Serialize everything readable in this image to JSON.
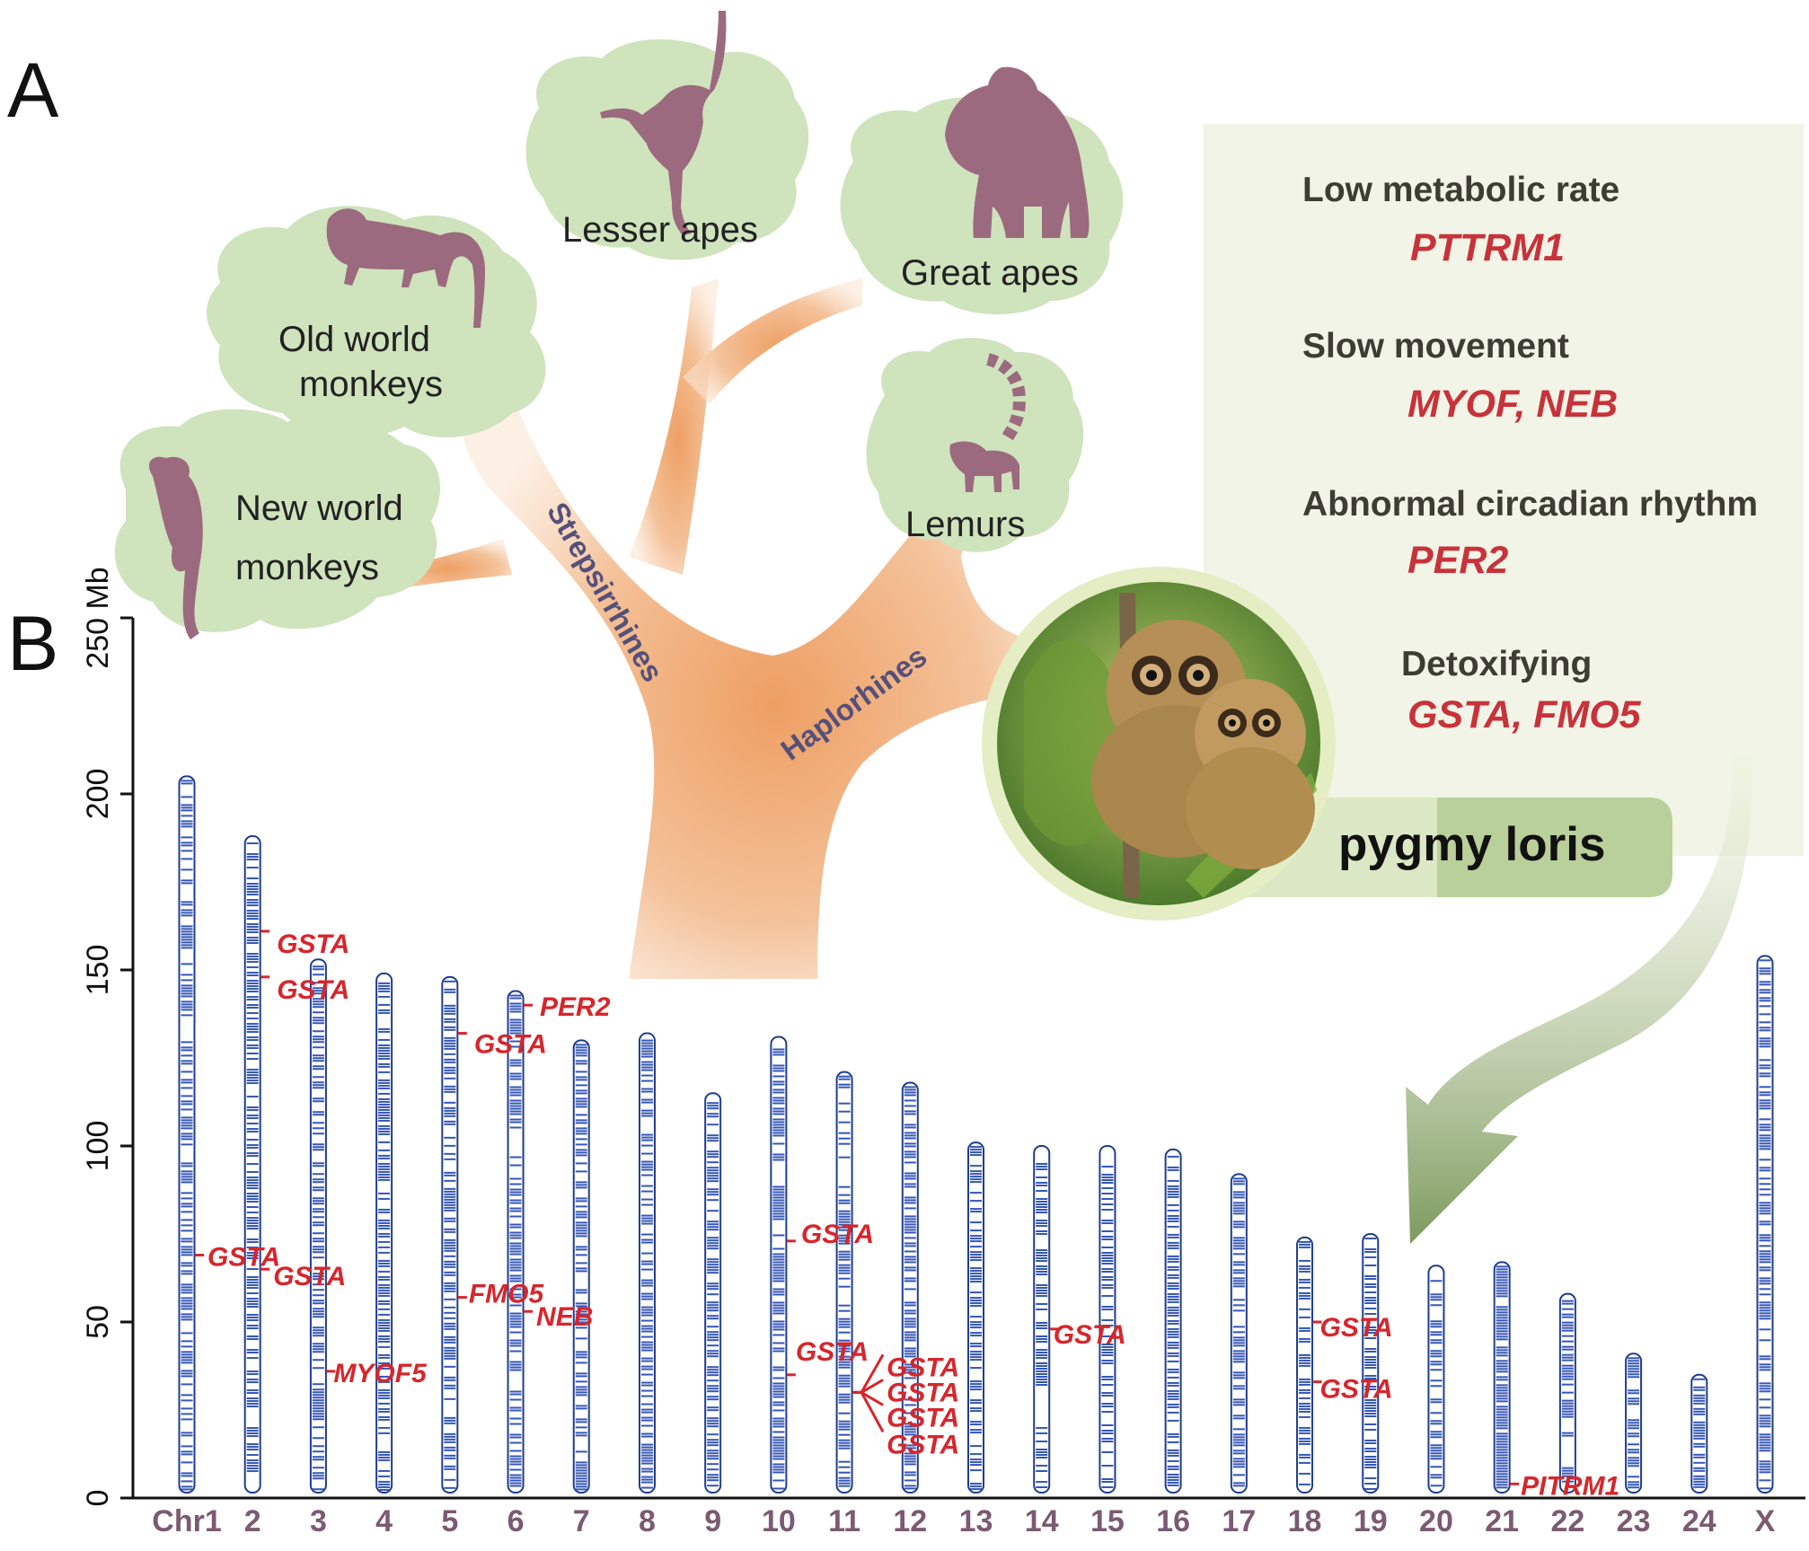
{
  "panels": {
    "a_label": "A",
    "b_label": "B"
  },
  "tree": {
    "clouds": {
      "new_world": {
        "line1": "New world",
        "line2": "monkeys"
      },
      "old_world": {
        "line1": "Old world",
        "line2": "monkeys"
      },
      "lesser_apes": "Lesser apes",
      "great_apes": "Great apes",
      "lemurs": "Lemurs"
    },
    "branches": {
      "strepsirrhines": "Strepsirrhines",
      "haplorhines": "Haplorhines"
    },
    "colors": {
      "cloud": "#cfe3bd",
      "silhouette": "#9c6a7e",
      "trunk": "#ee9f63",
      "branch_text": "#55507a"
    }
  },
  "traits": [
    {
      "title": "Low  metabolic rate",
      "genes": "PTTRM1"
    },
    {
      "title": "Slow movement",
      "genes": "MYOF, NEB"
    },
    {
      "title": "Abnormal circadian rhythm",
      "genes": "PER2"
    },
    {
      "title": "Detoxifying",
      "genes": "GSTA, FMO5"
    }
  ],
  "species_label": "pygmy loris",
  "chart_data": {
    "type": "ideogram",
    "ylabel": "250 Mb",
    "ylim": [
      0,
      250
    ],
    "yticks": [
      0,
      50,
      100,
      150,
      200
    ],
    "categories": [
      "Chr1",
      "2",
      "3",
      "4",
      "5",
      "6",
      "7",
      "8",
      "9",
      "10",
      "11",
      "12",
      "13",
      "14",
      "15",
      "16",
      "17",
      "18",
      "19",
      "20",
      "21",
      "22",
      "23",
      "24",
      "X"
    ],
    "lengths": [
      205,
      188,
      153,
      149,
      148,
      144,
      130,
      132,
      115,
      131,
      121,
      118,
      101,
      100,
      100,
      99,
      92,
      74,
      75,
      66,
      67,
      58,
      41,
      35,
      154
    ],
    "annotations": [
      {
        "chrom": "2",
        "pos": 161,
        "gene": "GSTA"
      },
      {
        "chrom": "2",
        "pos": 148,
        "gene": "GSTA"
      },
      {
        "chrom": "Chr1",
        "pos": 69,
        "gene": "GSTA"
      },
      {
        "chrom": "2",
        "pos": 65,
        "gene": "GSTA"
      },
      {
        "chrom": "3",
        "pos": 36,
        "gene": "MYOF5"
      },
      {
        "chrom": "5",
        "pos": 132,
        "gene": "GSTA"
      },
      {
        "chrom": "5",
        "pos": 57,
        "gene": "FMO5"
      },
      {
        "chrom": "6",
        "pos": 140,
        "gene": "PER2"
      },
      {
        "chrom": "6",
        "pos": 53,
        "gene": "NEB"
      },
      {
        "chrom": "10",
        "pos": 73,
        "gene": "GSTA"
      },
      {
        "chrom": "10",
        "pos": 35,
        "gene": "GSTA"
      },
      {
        "chrom": "11",
        "pos": 30,
        "gene": "GSTA"
      },
      {
        "chrom": "11",
        "pos": 30,
        "gene": "GSTA"
      },
      {
        "chrom": "11",
        "pos": 30,
        "gene": "GSTA"
      },
      {
        "chrom": "11",
        "pos": 30,
        "gene": "GSTA"
      },
      {
        "chrom": "14",
        "pos": 48,
        "gene": "GSTA"
      },
      {
        "chrom": "18",
        "pos": 50,
        "gene": "GSTA"
      },
      {
        "chrom": "18",
        "pos": 33,
        "gene": "GSTA"
      },
      {
        "chrom": "21",
        "pos": 4,
        "gene": "PITRM1"
      }
    ]
  }
}
